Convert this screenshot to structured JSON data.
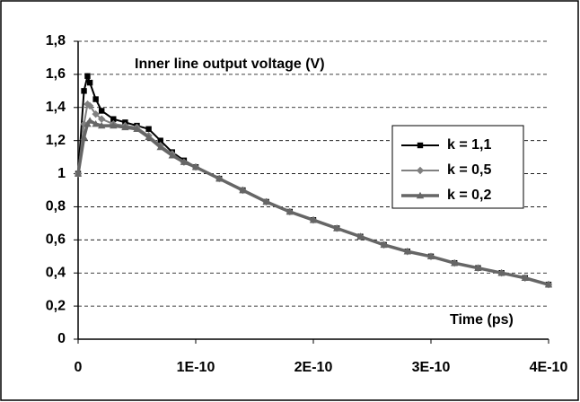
{
  "chart_data": {
    "type": "line",
    "title": "Inner line output voltage (V)",
    "x_label": "Time (ps)",
    "x": [
      0,
      5e-12,
      8e-12,
      1e-11,
      1.5e-11,
      2e-11,
      3e-11,
      4e-11,
      5e-11,
      6e-11,
      7e-11,
      8e-11,
      9e-11,
      1e-10,
      1.2e-10,
      1.4e-10,
      1.6e-10,
      1.8e-10,
      2e-10,
      2.2e-10,
      2.4e-10,
      2.6e-10,
      2.8e-10,
      3e-10,
      3.2e-10,
      3.4e-10,
      3.6e-10,
      3.8e-10,
      4e-10
    ],
    "series": [
      {
        "name": "k = 1,1",
        "color": "#000000",
        "marker": "square",
        "values": [
          1.0,
          1.5,
          1.59,
          1.55,
          1.45,
          1.38,
          1.33,
          1.31,
          1.29,
          1.27,
          1.2,
          1.13,
          1.08,
          1.04,
          0.97,
          0.9,
          0.83,
          0.77,
          0.72,
          0.67,
          0.62,
          0.57,
          0.53,
          0.5,
          0.46,
          0.43,
          0.4,
          0.37,
          0.33
        ]
      },
      {
        "name": "k = 0,5",
        "color": "#808080",
        "marker": "diamond",
        "values": [
          1.0,
          1.3,
          1.42,
          1.41,
          1.36,
          1.33,
          1.3,
          1.29,
          1.28,
          1.23,
          1.17,
          1.12,
          1.07,
          1.04,
          0.97,
          0.9,
          0.83,
          0.77,
          0.72,
          0.67,
          0.62,
          0.57,
          0.53,
          0.5,
          0.46,
          0.43,
          0.4,
          0.37,
          0.33
        ]
      },
      {
        "name": "k = 0,2",
        "color": "#666666",
        "marker": "triangle",
        "values": [
          1.0,
          1.22,
          1.3,
          1.32,
          1.3,
          1.29,
          1.29,
          1.28,
          1.27,
          1.22,
          1.16,
          1.11,
          1.07,
          1.04,
          0.97,
          0.9,
          0.83,
          0.77,
          0.72,
          0.67,
          0.62,
          0.57,
          0.53,
          0.5,
          0.46,
          0.43,
          0.4,
          0.37,
          0.33
        ]
      }
    ],
    "xlim": [
      0,
      4e-10
    ],
    "xticks": [
      0,
      {
        "value": 1e-10,
        "label": "1E-10"
      },
      {
        "value": 2e-10,
        "label": "2E-10"
      },
      {
        "value": 3e-10,
        "label": "3E-10"
      },
      {
        "value": 4e-10,
        "label": "4E-10"
      }
    ],
    "ylim": [
      0,
      1.8
    ],
    "yticks": [
      0,
      {
        "value": 0.2,
        "label": "0,2"
      },
      {
        "value": 0.4,
        "label": "0,4"
      },
      {
        "value": 0.6,
        "label": "0,6"
      },
      {
        "value": 0.8,
        "label": "0,8"
      },
      1,
      {
        "value": 1.2,
        "label": "1,2"
      },
      {
        "value": 1.4,
        "label": "1,4"
      },
      {
        "value": 1.6,
        "label": "1,6"
      },
      {
        "value": 1.8,
        "label": "1,8"
      }
    ],
    "grid": true,
    "legend": "right"
  }
}
